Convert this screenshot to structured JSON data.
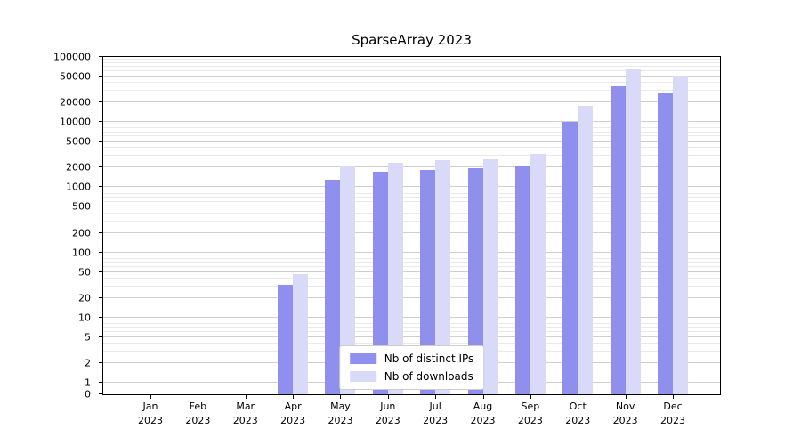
{
  "chart_data": {
    "type": "bar",
    "title": "SparseArray 2023",
    "year_label": "2023",
    "categories": [
      "Jan",
      "Feb",
      "Mar",
      "Apr",
      "May",
      "Jun",
      "Jul",
      "Aug",
      "Sep",
      "Oct",
      "Nov",
      "Dec"
    ],
    "series": [
      {
        "name": "Nb of distinct IPs",
        "color": "#8f8fee",
        "values": [
          0,
          0,
          0,
          32,
          1300,
          1750,
          1850,
          1950,
          2150,
          10000,
          35000,
          28000
        ]
      },
      {
        "name": "Nb of downloads",
        "color": "#d9d9f8",
        "values": [
          0,
          0,
          0,
          46,
          2100,
          2400,
          2600,
          2700,
          3200,
          18000,
          65000,
          52000
        ]
      }
    ],
    "yscale": "symlog",
    "ylim": [
      0,
      100000
    ],
    "yticks": [
      0,
      1,
      2,
      5,
      10,
      20,
      50,
      100,
      200,
      500,
      1000,
      2000,
      5000,
      10000,
      20000,
      50000,
      100000
    ],
    "grid": true,
    "legend_position": "lower center",
    "colors": {
      "grid_major": "#cfcfcf",
      "grid_minor": "#e9e9e9",
      "axis": "#000000",
      "background": "#ffffff"
    }
  }
}
